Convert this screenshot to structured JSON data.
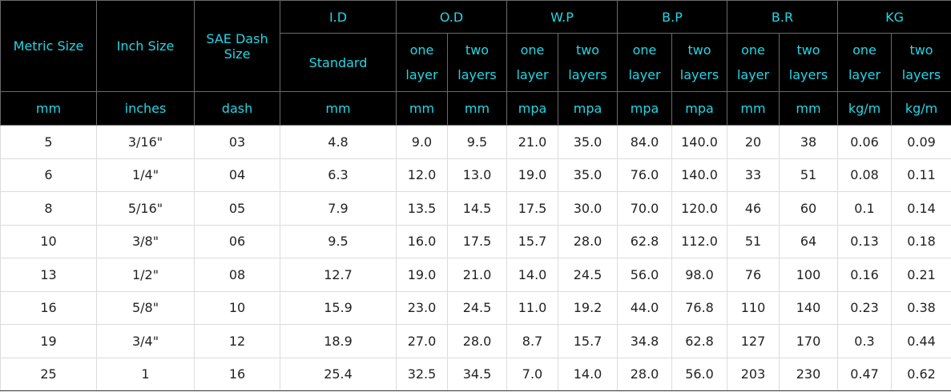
{
  "table": {
    "columns": [
      "Metric Size",
      "Inch Size",
      "SAE Dash Size"
    ],
    "groups": [
      {
        "label": "I.D",
        "sub": [
          "Standard"
        ]
      },
      {
        "label": "O.D",
        "sub": [
          "one layer",
          "two layers"
        ]
      },
      {
        "label": "W.P",
        "sub": [
          "one layer",
          "two layers"
        ]
      },
      {
        "label": "B.P",
        "sub": [
          "one layer",
          "two layers"
        ]
      },
      {
        "label": "B.R",
        "sub": [
          "one layer",
          "two layers"
        ]
      },
      {
        "label": "KG",
        "sub": [
          "one layer",
          "two layers"
        ]
      }
    ],
    "units": [
      "mm",
      "inches",
      "dash",
      "mm",
      "mm",
      "mm",
      "mpa",
      "mpa",
      "mpa",
      "mpa",
      "mm",
      "mm",
      "kg/m",
      "kg/m"
    ],
    "rows": [
      [
        "5",
        "3/16\"",
        "03",
        "4.8",
        "9.0",
        "9.5",
        "21.0",
        "35.0",
        "84.0",
        "140.0",
        "20",
        "38",
        "0.06",
        "0.09"
      ],
      [
        "6",
        "1/4\"",
        "04",
        "6.3",
        "12.0",
        "13.0",
        "19.0",
        "35.0",
        "76.0",
        "140.0",
        "33",
        "51",
        "0.08",
        "0.11"
      ],
      [
        "8",
        "5/16\"",
        "05",
        "7.9",
        "13.5",
        "14.5",
        "17.5",
        "30.0",
        "70.0",
        "120.0",
        "46",
        "60",
        "0.1",
        "0.14"
      ],
      [
        "10",
        "3/8\"",
        "06",
        "9.5",
        "16.0",
        "17.5",
        "15.7",
        "28.0",
        "62.8",
        "112.0",
        "51",
        "64",
        "0.13",
        "0.18"
      ],
      [
        "13",
        "1/2\"",
        "08",
        "12.7",
        "19.0",
        "21.0",
        "14.0",
        "24.5",
        "56.0",
        "98.0",
        "76",
        "100",
        "0.16",
        "0.21"
      ],
      [
        "16",
        "5/8\"",
        "10",
        "15.9",
        "23.0",
        "24.5",
        "11.0",
        "19.2",
        "44.0",
        "76.8",
        "110",
        "140",
        "0.23",
        "0.38"
      ],
      [
        "19",
        "3/4\"",
        "12",
        "18.9",
        "27.0",
        "28.0",
        "8.7",
        "15.7",
        "34.8",
        "62.8",
        "127",
        "170",
        "0.3",
        "0.44"
      ],
      [
        "25",
        "1",
        "16",
        "25.4",
        "32.5",
        "34.5",
        "7.0",
        "14.0",
        "28.0",
        "56.0",
        "203",
        "230",
        "0.47",
        "0.62"
      ]
    ]
  }
}
